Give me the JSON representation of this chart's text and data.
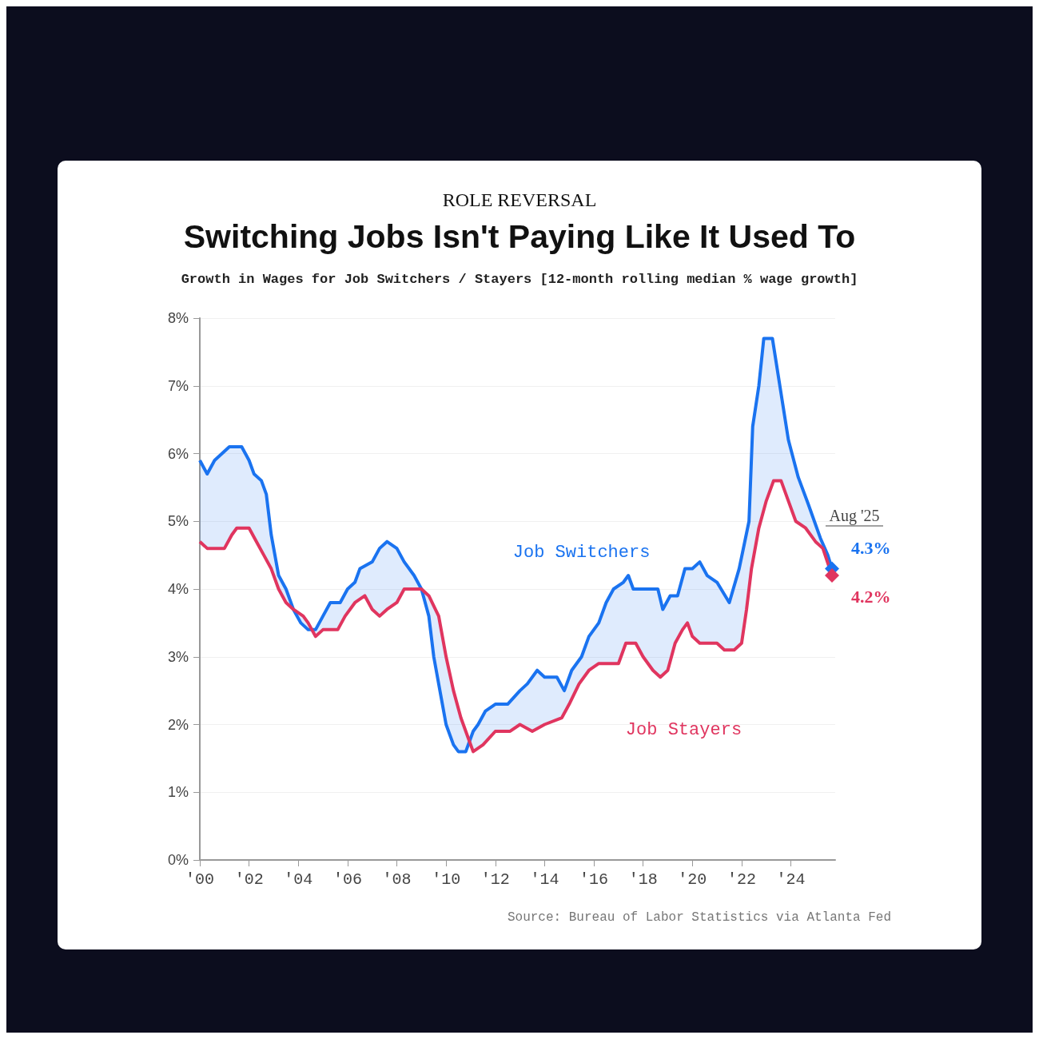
{
  "chart_data": {
    "type": "line",
    "title": "Switching Jobs Isn't Paying Like It Used To",
    "subtitle": "Growth in Wages for Job Switchers / Stayers [12-month rolling median % wage growth]",
    "annotations": [
      "ROLE REVERSAL",
      "Aug '25",
      "Source: Bureau of Labor Statistics via Atlanta Fed"
    ],
    "series": [
      {
        "name": "Job Switchers",
        "color": "#1a73f0",
        "x": [
          2000.0,
          2000.3,
          2000.6,
          2000.9,
          2001.2,
          2001.7,
          2002.0,
          2002.2,
          2002.5,
          2002.7,
          2002.9,
          2003.2,
          2003.5,
          2003.8,
          2004.1,
          2004.4,
          2004.7,
          2005.0,
          2005.3,
          2005.7,
          2006.0,
          2006.3,
          2006.5,
          2007.0,
          2007.3,
          2007.6,
          2008.0,
          2008.3,
          2008.7,
          2009.0,
          2009.3,
          2009.5,
          2009.8,
          2010.0,
          2010.3,
          2010.5,
          2010.8,
          2011.1,
          2011.3,
          2011.6,
          2012.0,
          2012.5,
          2013.0,
          2013.3,
          2013.7,
          2014.0,
          2014.5,
          2014.8,
          2015.1,
          2015.5,
          2015.8,
          2016.2,
          2016.5,
          2016.8,
          2017.2,
          2017.4,
          2017.6,
          2018.0,
          2018.6,
          2018.8,
          2019.1,
          2019.4,
          2019.7,
          2020.0,
          2020.3,
          2020.6,
          2021.0,
          2021.5,
          2021.9,
          2022.3,
          2022.45,
          2022.7,
          2022.9,
          2023.25,
          2023.64,
          2023.9,
          2024.3,
          2024.7,
          2025.2,
          2025.5,
          2025.67
        ],
        "values": [
          5.9,
          5.7,
          5.9,
          6.0,
          6.1,
          6.1,
          5.9,
          5.7,
          5.6,
          5.4,
          4.8,
          4.2,
          4.0,
          3.7,
          3.5,
          3.4,
          3.4,
          3.6,
          3.8,
          3.8,
          4.0,
          4.1,
          4.3,
          4.4,
          4.6,
          4.7,
          4.6,
          4.4,
          4.2,
          4.0,
          3.6,
          3.0,
          2.4,
          2.0,
          1.7,
          1.6,
          1.6,
          1.9,
          2.0,
          2.2,
          2.3,
          2.3,
          2.5,
          2.6,
          2.8,
          2.7,
          2.7,
          2.5,
          2.8,
          3.0,
          3.3,
          3.5,
          3.8,
          4.0,
          4.1,
          4.2,
          4.0,
          4.0,
          4.0,
          3.7,
          3.9,
          3.9,
          4.3,
          4.3,
          4.4,
          4.2,
          4.1,
          3.8,
          4.3,
          5.0,
          6.4,
          7.0,
          7.7,
          7.7,
          6.8,
          6.2,
          5.65,
          5.26,
          4.75,
          4.5,
          4.3
        ],
        "value_labels": [
          null,
          null,
          null,
          null,
          null,
          null,
          null,
          null,
          null,
          null,
          null,
          null,
          null,
          null,
          null,
          null,
          null,
          null,
          null,
          null,
          null,
          null,
          null,
          null,
          null,
          null,
          null,
          null,
          null,
          null,
          null,
          null,
          null,
          null,
          null,
          null,
          null,
          null,
          null,
          null,
          null,
          null,
          null,
          null,
          null,
          null,
          null,
          null,
          null,
          null,
          null,
          null,
          null,
          null,
          null,
          null,
          null,
          null,
          null,
          null,
          null,
          null,
          null,
          null,
          null,
          null,
          null,
          null,
          null,
          null,
          null,
          null,
          null,
          null,
          null,
          null,
          null,
          null,
          null,
          null,
          "4.3%"
        ]
      },
      {
        "name": "Job Stayers",
        "color": "#e0355f",
        "x": [
          2000.0,
          2000.3,
          2001.0,
          2001.3,
          2001.5,
          2002.0,
          2002.3,
          2002.6,
          2002.9,
          2003.2,
          2003.5,
          2003.8,
          2004.2,
          2004.4,
          2004.7,
          2005.0,
          2005.6,
          2005.9,
          2006.3,
          2006.7,
          2007.0,
          2007.3,
          2007.6,
          2008.0,
          2008.3,
          2008.7,
          2009.0,
          2009.3,
          2009.7,
          2010.0,
          2010.3,
          2010.6,
          2010.9,
          2011.1,
          2011.5,
          2012.0,
          2012.6,
          2013.0,
          2013.5,
          2014.0,
          2014.7,
          2015.0,
          2015.4,
          2015.8,
          2016.2,
          2017.0,
          2017.3,
          2017.7,
          2018.0,
          2018.4,
          2018.7,
          2019.0,
          2019.3,
          2019.6,
          2019.8,
          2020.0,
          2020.3,
          2021.0,
          2021.3,
          2021.7,
          2022.0,
          2022.2,
          2022.4,
          2022.7,
          2023.0,
          2023.3,
          2023.6,
          2023.9,
          2024.2,
          2024.6,
          2025.0,
          2025.3,
          2025.67
        ],
        "values": [
          4.7,
          4.6,
          4.6,
          4.8,
          4.9,
          4.9,
          4.7,
          4.5,
          4.3,
          4.0,
          3.8,
          3.7,
          3.6,
          3.5,
          3.3,
          3.4,
          3.4,
          3.6,
          3.8,
          3.9,
          3.7,
          3.6,
          3.7,
          3.8,
          4.0,
          4.0,
          4.0,
          3.9,
          3.6,
          3.0,
          2.5,
          2.1,
          1.8,
          1.6,
          1.7,
          1.9,
          1.9,
          2.0,
          1.9,
          2.0,
          2.1,
          2.3,
          2.6,
          2.8,
          2.9,
          2.9,
          3.2,
          3.2,
          3.0,
          2.8,
          2.7,
          2.8,
          3.2,
          3.4,
          3.5,
          3.3,
          3.2,
          3.2,
          3.1,
          3.1,
          3.2,
          3.7,
          4.3,
          4.9,
          5.3,
          5.6,
          5.6,
          5.3,
          5.0,
          4.9,
          4.7,
          4.6,
          4.2
        ],
        "value_labels": [
          null,
          null,
          null,
          null,
          null,
          null,
          null,
          null,
          null,
          null,
          null,
          null,
          null,
          null,
          null,
          null,
          null,
          null,
          null,
          null,
          null,
          null,
          null,
          null,
          null,
          null,
          null,
          null,
          null,
          null,
          null,
          null,
          null,
          null,
          null,
          null,
          null,
          null,
          null,
          null,
          null,
          null,
          null,
          null,
          null,
          null,
          null,
          null,
          null,
          null,
          null,
          null,
          null,
          null,
          null,
          null,
          null,
          null,
          null,
          null,
          null,
          null,
          null,
          null,
          null,
          null,
          null,
          null,
          null,
          null,
          null,
          null,
          "4.2%"
        ]
      }
    ],
    "xlim": [
      2000,
      2025.8
    ],
    "xticks": [
      {
        "value": 2000,
        "label": "'00"
      },
      {
        "value": 2002,
        "label": "'02"
      },
      {
        "value": 2004,
        "label": "'04"
      },
      {
        "value": 2006,
        "label": "'06"
      },
      {
        "value": 2008,
        "label": "'08"
      },
      {
        "value": 2010,
        "label": "'10"
      },
      {
        "value": 2012,
        "label": "'12"
      },
      {
        "value": 2014,
        "label": "'14"
      },
      {
        "value": 2016,
        "label": "'16"
      },
      {
        "value": 2018,
        "label": "'18"
      },
      {
        "value": 2020,
        "label": "'20"
      },
      {
        "value": 2022,
        "label": "'22"
      },
      {
        "value": 2024,
        "label": "'24"
      }
    ],
    "ylim": [
      0,
      8
    ],
    "yticks": [
      {
        "value": 0,
        "label": "0%"
      },
      {
        "value": 1,
        "label": "1%"
      },
      {
        "value": 2,
        "label": "2%"
      },
      {
        "value": 3,
        "label": "3%"
      },
      {
        "value": 4,
        "label": "4%"
      },
      {
        "value": 5,
        "label": "5%"
      },
      {
        "value": 6,
        "label": "6%"
      },
      {
        "value": 7,
        "label": "7%"
      },
      {
        "value": 8,
        "label": "8%"
      }
    ],
    "grid": "y"
  }
}
